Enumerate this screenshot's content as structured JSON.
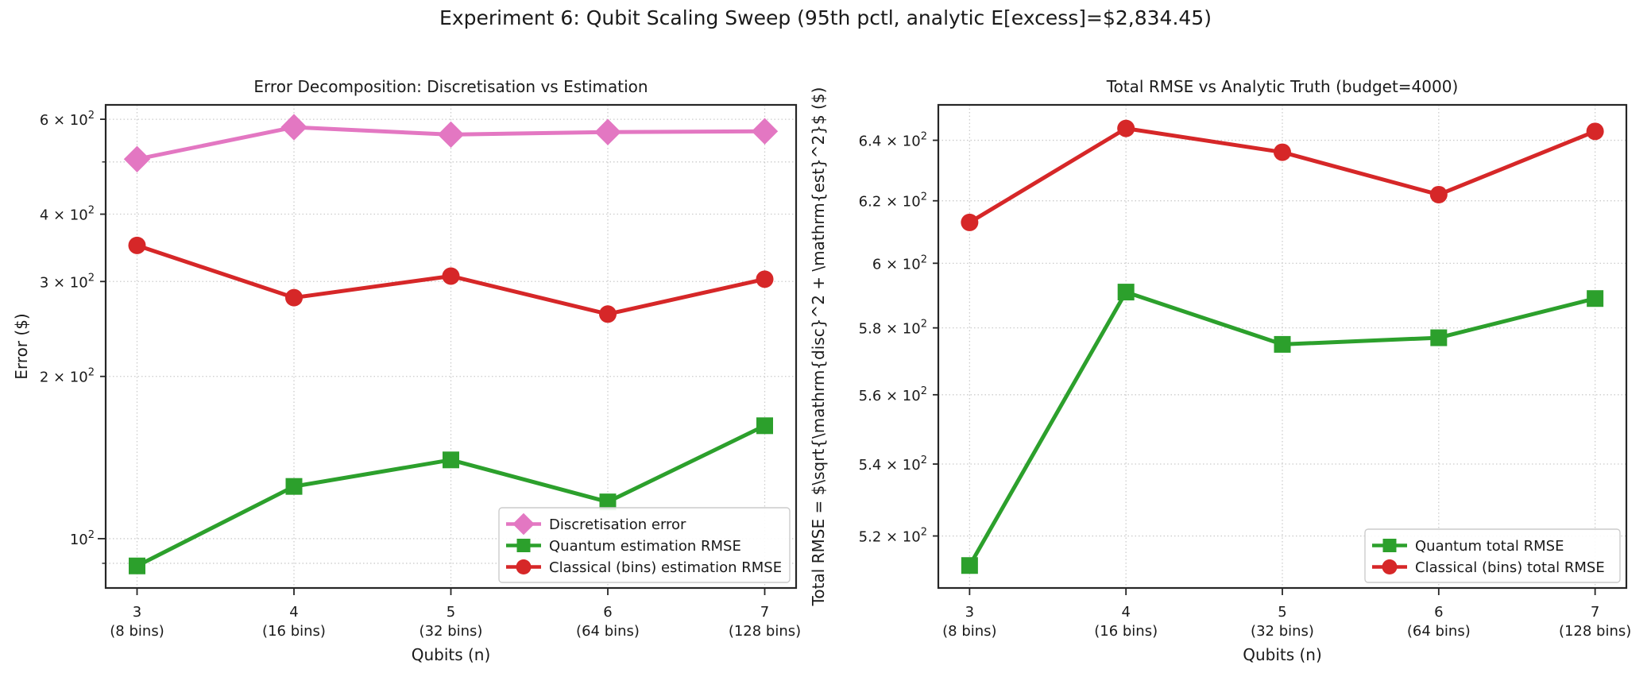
{
  "figure": {
    "suptitle": "Experiment 6: Qubit Scaling Sweep (95th pctl, analytic E[excess]=$2,834.45)",
    "background": "#ffffff",
    "text_color": "#1a1a1a",
    "spine_color": "#262626",
    "grid_color": "#cccccc"
  },
  "chart_data": [
    {
      "type": "line",
      "title": "Error Decomposition: Discretisation vs Estimation",
      "xlabel": "Qubits (n)",
      "ylabel": "Error ($)",
      "yscale": "log",
      "ylim": [
        81,
        638
      ],
      "x": [
        3,
        4,
        5,
        6,
        7
      ],
      "xtick_labels": [
        "3",
        "4",
        "5",
        "6",
        "7"
      ],
      "xtick_sublabels": [
        "(8 bins)",
        "(16 bins)",
        "(32 bins)",
        "(64 bins)",
        "(128 bins)"
      ],
      "yticks": [
        {
          "value": 600,
          "label": "6 × 10^2"
        },
        {
          "value": 400,
          "label": "4 × 10^2"
        },
        {
          "value": 300,
          "label": "3 × 10^2"
        },
        {
          "value": 200,
          "label": "2 × 10^2"
        },
        {
          "value": 100,
          "label": "10^2"
        }
      ],
      "ygrid_unlabeled": [
        500,
        90
      ],
      "grid": true,
      "legend_position": "lower right",
      "series": [
        {
          "name": "Discretisation error",
          "color": "#e377c2",
          "marker": "diamond",
          "values": [
            506,
            580,
            562,
            568,
            570
          ]
        },
        {
          "name": "Quantum estimation RMSE",
          "color": "#2ca02c",
          "marker": "square",
          "values": [
            89,
            125,
            140,
            117,
            162
          ]
        },
        {
          "name": "Classical (bins) estimation RMSE",
          "color": "#d62728",
          "marker": "circle",
          "values": [
            350,
            280,
            307,
            261,
            303
          ]
        }
      ]
    },
    {
      "type": "line",
      "title": "Total RMSE vs Analytic Truth (budget=4000)",
      "xlabel": "Qubits (n)",
      "ylabel": "Total RMSE = $\\sqrt{\\mathrm{disc}^2 + \\mathrm{est}^2}$  ($)",
      "yscale": "log",
      "ylim": [
        506,
        652
      ],
      "x": [
        3,
        4,
        5,
        6,
        7
      ],
      "xtick_labels": [
        "3",
        "4",
        "5",
        "6",
        "7"
      ],
      "xtick_sublabels": [
        "(8 bins)",
        "(16 bins)",
        "(32 bins)",
        "(64 bins)",
        "(128 bins)"
      ],
      "yticks": [
        {
          "value": 640,
          "label": "6.4 × 10^2"
        },
        {
          "value": 620,
          "label": "6.2 × 10^2"
        },
        {
          "value": 600,
          "label": "6 × 10^2"
        },
        {
          "value": 580,
          "label": "5.8 × 10^2"
        },
        {
          "value": 560,
          "label": "5.6 × 10^2"
        },
        {
          "value": 540,
          "label": "5.4 × 10^2"
        },
        {
          "value": 520,
          "label": "5.2 × 10^2"
        }
      ],
      "ygrid_unlabeled": [],
      "grid": true,
      "legend_position": "lower right",
      "series": [
        {
          "name": "Quantum total RMSE",
          "color": "#2ca02c",
          "marker": "square",
          "values": [
            512,
            591,
            575,
            577,
            589
          ]
        },
        {
          "name": "Classical (bins) total RMSE",
          "color": "#d62728",
          "marker": "circle",
          "values": [
            613,
            644,
            636,
            622,
            643
          ]
        }
      ]
    }
  ]
}
